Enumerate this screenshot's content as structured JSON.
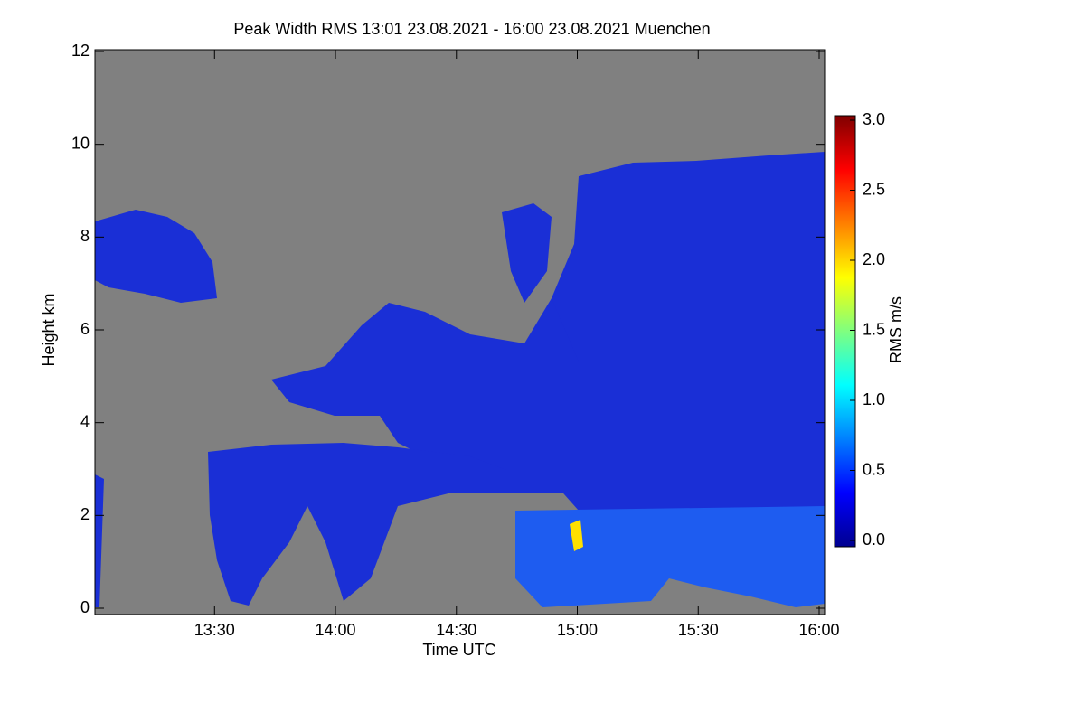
{
  "chart_data": {
    "type": "heatmap",
    "title": "Peak Width RMS   13:01 23.08.2021 - 16:00 23.08.2021 Muenchen",
    "x_label": "Time UTC",
    "y_label": "Height km",
    "xlim": [
      "13:01",
      "16:00"
    ],
    "xticks": [
      "13:30",
      "14:00",
      "14:30",
      "15:00",
      "15:30",
      "16:00"
    ],
    "ylim": [
      0,
      12
    ],
    "yticks": [
      0,
      2,
      4,
      6,
      8,
      10,
      12
    ],
    "colorbar": {
      "label": "RMS m/s",
      "lim": [
        0,
        3
      ],
      "colormap": "jet",
      "ticks": [
        {
          "value": 0,
          "label": "0.0"
        },
        {
          "value": 0.5,
          "label": "0.5"
        },
        {
          "value": 1,
          "label": "1.0"
        },
        {
          "value": 1.5,
          "label": "1.5"
        },
        {
          "value": 2,
          "label": "2.0"
        },
        {
          "value": 2.5,
          "label": "2.5"
        },
        {
          "value": 3,
          "label": "3.0"
        }
      ]
    }
  }
}
